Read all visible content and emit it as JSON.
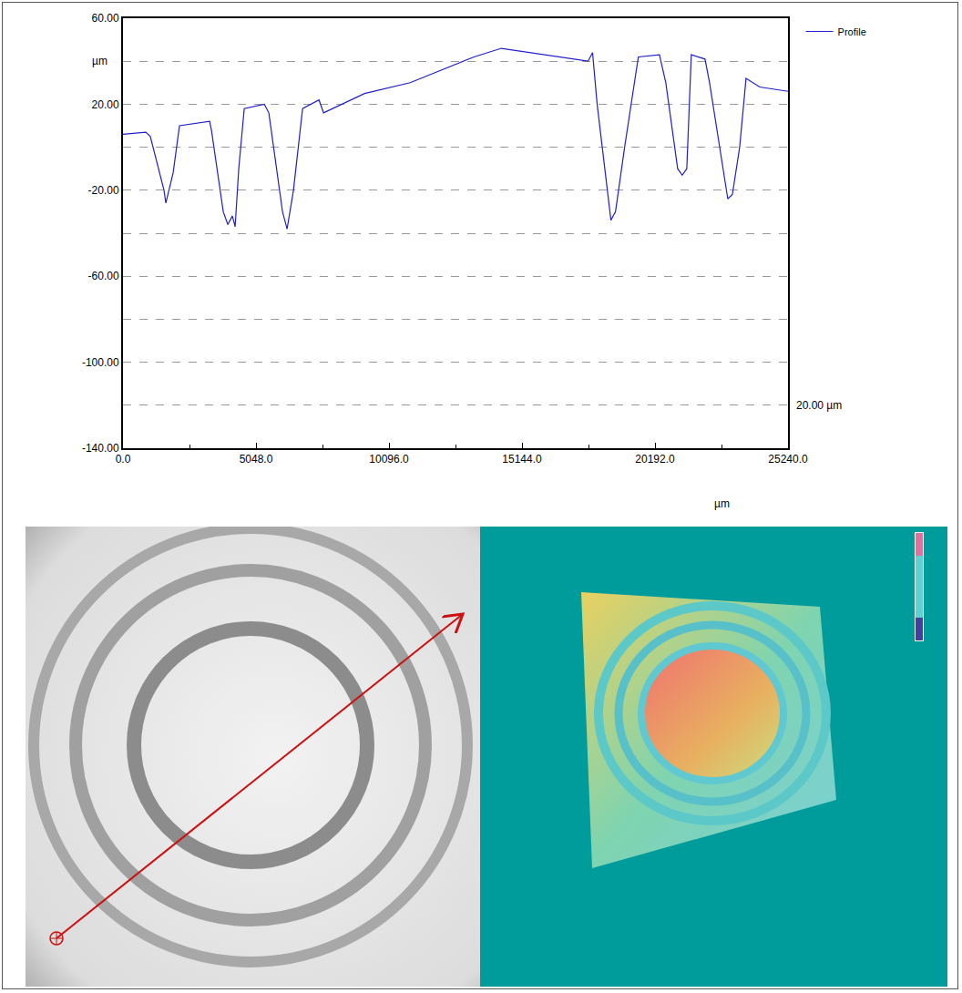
{
  "chart_data": {
    "type": "line",
    "xlabel": "µm",
    "ylabel": "µm",
    "annotations": [
      "20.00 µm"
    ],
    "series": [
      {
        "name": "Profile",
        "color": "#1f1fcf",
        "x": [
          0,
          865,
          1038,
          1557,
          1626,
          1903,
          2145,
          3287,
          3356,
          3806,
          3979,
          4152,
          4256,
          4394,
          4602,
          5363,
          5536,
          6055,
          6228,
          6470,
          6817,
          7440,
          7613,
          9170,
          10900,
          12285,
          13323,
          14360,
          16090,
          17650,
          17823,
          17996,
          18520,
          18693,
          19039,
          19560,
          20360,
          20603,
          21052,
          21225,
          21398,
          21570,
          22090,
          22263,
          22955,
          23128,
          23405,
          23647,
          24166,
          25240
        ],
        "values": [
          6,
          7,
          5,
          -20,
          -26,
          -12,
          10,
          12,
          8,
          -30,
          -36,
          -32,
          -37,
          -10,
          18,
          20,
          16,
          -30,
          -38,
          -20,
          18,
          22,
          16,
          25,
          30,
          37,
          42,
          46,
          43,
          40,
          44,
          20,
          -34,
          -30,
          0,
          42,
          43,
          30,
          -10,
          -13,
          -10,
          43,
          41,
          30,
          -24,
          -22,
          0,
          32,
          28,
          26
        ],
        "line_style": "solid"
      }
    ],
    "xlim": [
      0,
      25240
    ],
    "xticks": [
      {
        "value": 0,
        "label": "0.0"
      },
      {
        "value": 5048,
        "label": "5048.0"
      },
      {
        "value": 10096,
        "label": "10096.0"
      },
      {
        "value": 15144,
        "label": "15144.0"
      },
      {
        "value": 20192,
        "label": "20192.0"
      },
      {
        "value": 25240,
        "label": "25240.0"
      }
    ],
    "ylim": [
      -140,
      60
    ],
    "yticks": [
      {
        "value": -140,
        "label": "-140.00"
      },
      {
        "value": -100,
        "label": "-100.00"
      },
      {
        "value": -60,
        "label": "-60.00"
      },
      {
        "value": -20,
        "label": "-20.00"
      },
      {
        "value": 20,
        "label": "20.00"
      },
      {
        "value": 60,
        "label": "60.00"
      }
    ],
    "grid": true,
    "legend": "top right outside"
  }
}
